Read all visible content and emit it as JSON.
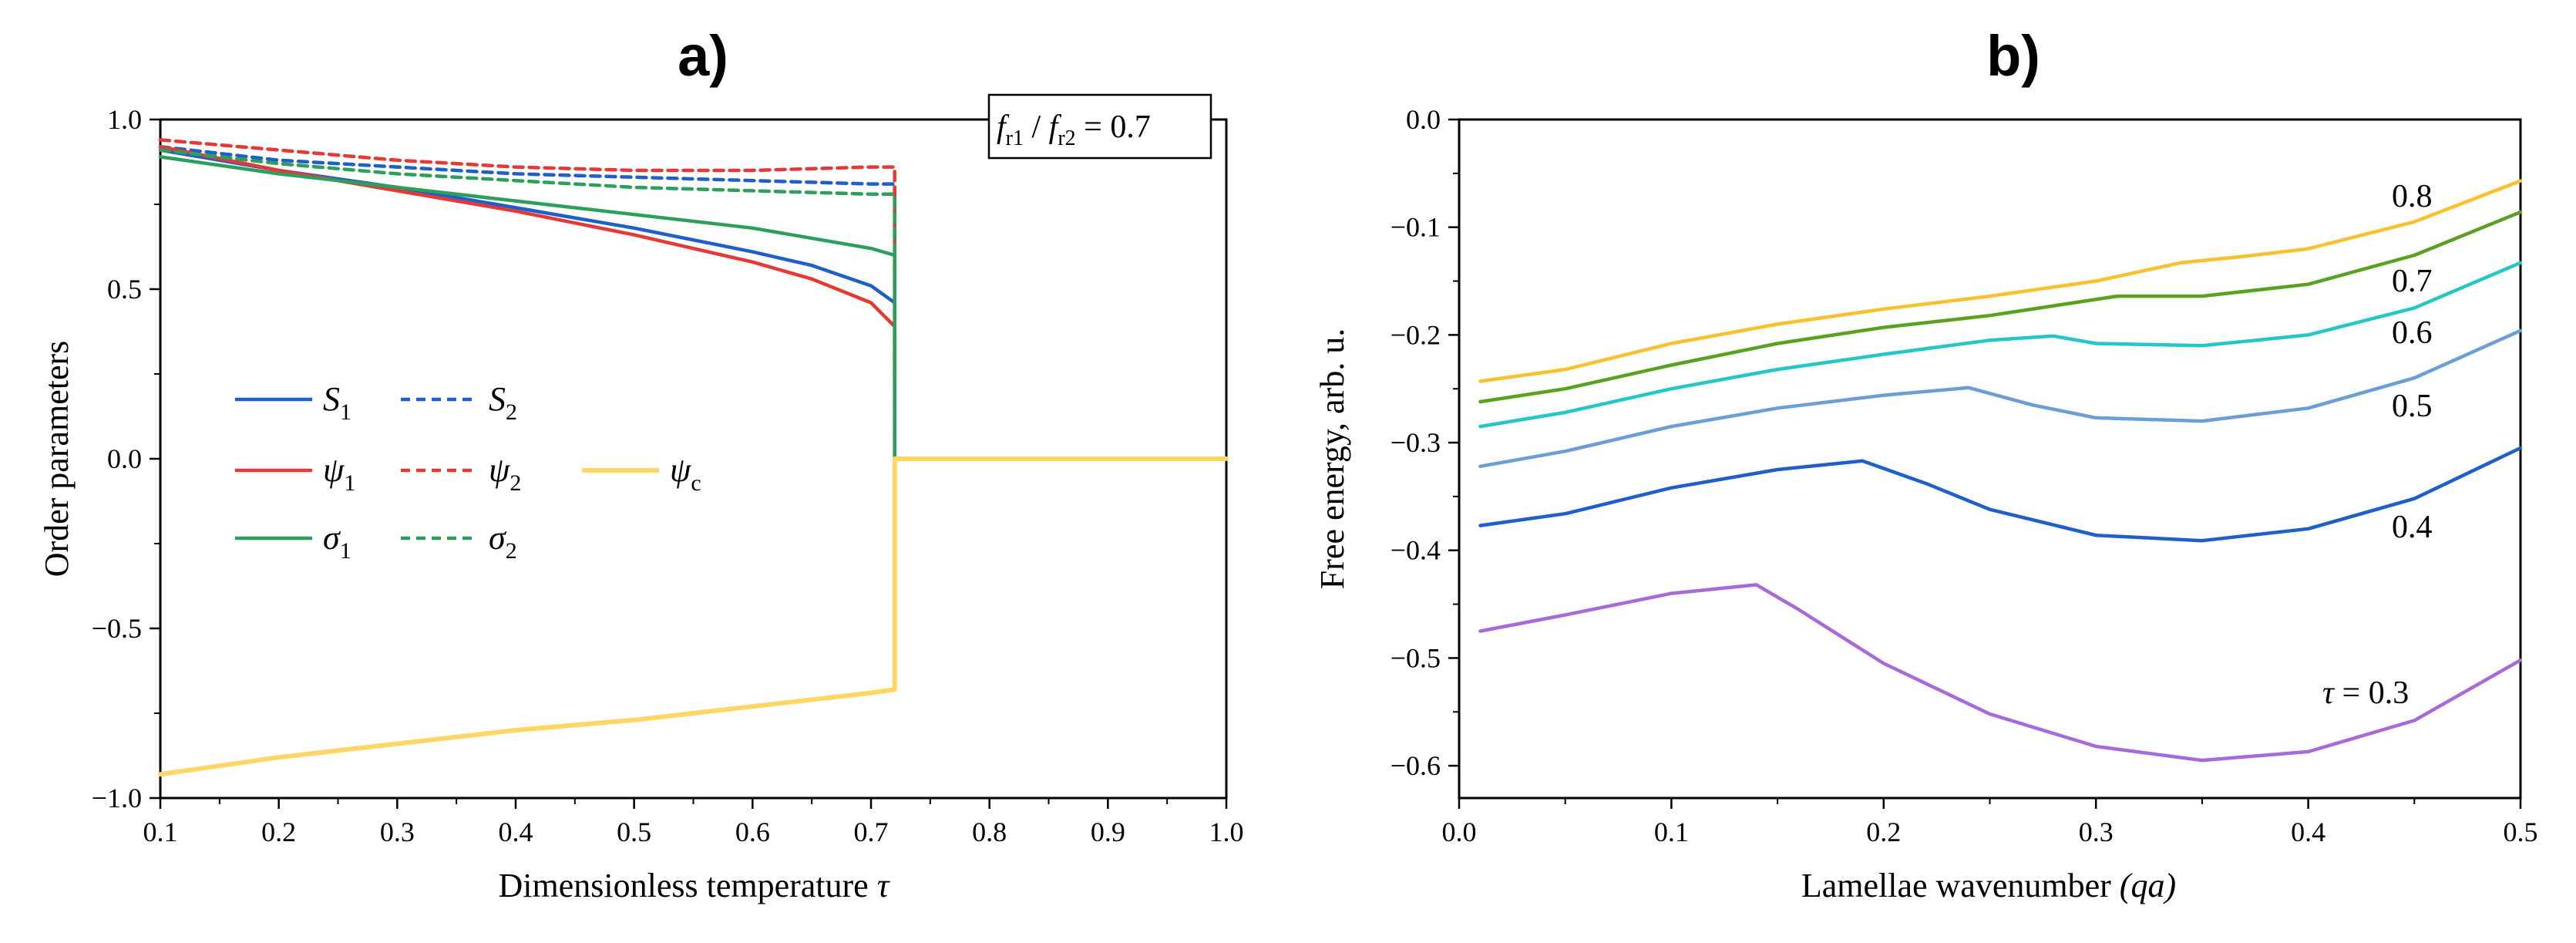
{
  "panels": {
    "a": {
      "title": "a)",
      "ratio": {
        "f": "f",
        "r1": "r1",
        "slash": " / ",
        "r2": "r2",
        "value": " = 0.7"
      },
      "legend": [
        {
          "name": "S",
          "sub": "1",
          "color": "#1f5fc9",
          "dash": false
        },
        {
          "name": "S",
          "sub": "2",
          "color": "#1f5fc9",
          "dash": true
        },
        {
          "name": "ψ",
          "sub": "1",
          "color": "#e53935",
          "dash": false
        },
        {
          "name": "ψ",
          "sub": "2",
          "color": "#e53935",
          "dash": true
        },
        {
          "name": "ψ",
          "sub": "c",
          "color": "#fdd663",
          "dash": false
        },
        {
          "name": "σ",
          "sub": "1",
          "color": "#2e9e5b",
          "dash": false
        },
        {
          "name": "σ",
          "sub": "2",
          "color": "#2e9e5b",
          "dash": true
        }
      ]
    },
    "b": {
      "title": "b)",
      "labels": [
        "0.8",
        "0.7",
        "0.6",
        "0.5",
        "0.4"
      ],
      "tau_label": {
        "prefix": "τ",
        "suffix": " = 0.3"
      }
    }
  },
  "chart_data": [
    {
      "type": "line",
      "title": "a)",
      "xlabel": "Dimensionless temperature",
      "xlabel_symbol": "τ",
      "ylabel": "Order parameters",
      "xlim": [
        0.1,
        1.0
      ],
      "ylim": [
        -1.0,
        1.0
      ],
      "xticks": [
        "0.1",
        "0.2",
        "0.3",
        "0.4",
        "0.5",
        "0.6",
        "0.7",
        "0.8",
        "0.9",
        "1.0"
      ],
      "yticks": [
        "1.0",
        "0.5",
        "0.0",
        "−0.5",
        "−1.0"
      ],
      "annotation": "f_r1 / f_r2 = 0.7",
      "series": [
        {
          "name": "S1",
          "color": "#1f5fc9",
          "dash": false,
          "x": [
            0.1,
            0.2,
            0.3,
            0.4,
            0.5,
            0.6,
            0.65,
            0.7,
            0.72,
            0.72,
            1.0
          ],
          "y": [
            0.91,
            0.85,
            0.8,
            0.74,
            0.68,
            0.61,
            0.57,
            0.51,
            0.46,
            0.0,
            0.0
          ]
        },
        {
          "name": "S2",
          "color": "#1f5fc9",
          "dash": true,
          "x": [
            0.1,
            0.2,
            0.3,
            0.4,
            0.5,
            0.6,
            0.7,
            0.72,
            0.72
          ],
          "y": [
            0.92,
            0.88,
            0.86,
            0.84,
            0.83,
            0.82,
            0.81,
            0.81,
            0.46
          ]
        },
        {
          "name": "ψ1",
          "color": "#e53935",
          "dash": false,
          "x": [
            0.1,
            0.2,
            0.3,
            0.4,
            0.5,
            0.6,
            0.65,
            0.7,
            0.72,
            0.72
          ],
          "y": [
            0.92,
            0.85,
            0.79,
            0.73,
            0.66,
            0.58,
            0.53,
            0.46,
            0.39,
            0.22
          ]
        },
        {
          "name": "ψ2",
          "color": "#e53935",
          "dash": true,
          "x": [
            0.1,
            0.2,
            0.3,
            0.4,
            0.5,
            0.6,
            0.7,
            0.72,
            0.72
          ],
          "y": [
            0.94,
            0.91,
            0.88,
            0.86,
            0.85,
            0.85,
            0.86,
            0.86,
            0.4
          ]
        },
        {
          "name": "σ1",
          "color": "#2e9e5b",
          "dash": false,
          "x": [
            0.1,
            0.2,
            0.3,
            0.4,
            0.5,
            0.6,
            0.7,
            0.72,
            0.72
          ],
          "y": [
            0.89,
            0.84,
            0.8,
            0.76,
            0.72,
            0.68,
            0.62,
            0.6,
            0.0
          ]
        },
        {
          "name": "σ2",
          "color": "#2e9e5b",
          "dash": true,
          "x": [
            0.1,
            0.2,
            0.3,
            0.4,
            0.5,
            0.6,
            0.7,
            0.72,
            0.72
          ],
          "y": [
            0.91,
            0.87,
            0.84,
            0.82,
            0.8,
            0.79,
            0.78,
            0.78,
            0.0
          ]
        },
        {
          "name": "ψc",
          "color": "#fdd663",
          "dash": false,
          "x": [
            0.1,
            0.2,
            0.3,
            0.4,
            0.5,
            0.6,
            0.7,
            0.72,
            0.72,
            1.0
          ],
          "y": [
            -0.93,
            -0.88,
            -0.84,
            -0.8,
            -0.77,
            -0.73,
            -0.69,
            -0.68,
            0.0,
            0.0
          ]
        }
      ]
    },
    {
      "type": "line",
      "title": "b)",
      "xlabel": "Lamellae wavenumber",
      "xlabel_symbol": "(qa)",
      "ylabel": "Free energy, arb. u.",
      "xlim": [
        0.0,
        0.5
      ],
      "ylim": [
        -0.63,
        0.0
      ],
      "xticks": [
        "0.0",
        "0.1",
        "0.2",
        "0.3",
        "0.4",
        "0.5"
      ],
      "yticks": [
        "0.0",
        "−0.1",
        "−0.2",
        "−0.3",
        "−0.4",
        "−0.5",
        "−0.6"
      ],
      "series": [
        {
          "name": "0.8",
          "color": "#fbc02d",
          "x": [
            0.01,
            0.05,
            0.1,
            0.15,
            0.2,
            0.25,
            0.3,
            0.34,
            0.37,
            0.4,
            0.45,
            0.5
          ],
          "y": [
            -0.243,
            -0.232,
            -0.208,
            -0.19,
            -0.176,
            -0.164,
            -0.15,
            -0.133,
            -0.127,
            -0.12,
            -0.095,
            -0.057
          ]
        },
        {
          "name": "0.7",
          "color": "#5aa121",
          "x": [
            0.01,
            0.05,
            0.1,
            0.15,
            0.2,
            0.25,
            0.31,
            0.33,
            0.35,
            0.4,
            0.45,
            0.5
          ],
          "y": [
            -0.262,
            -0.25,
            -0.228,
            -0.208,
            -0.193,
            -0.182,
            -0.164,
            -0.164,
            -0.164,
            -0.153,
            -0.126,
            -0.086
          ]
        },
        {
          "name": "0.6",
          "color": "#26c6c6",
          "x": [
            0.01,
            0.05,
            0.1,
            0.15,
            0.2,
            0.25,
            0.28,
            0.3,
            0.35,
            0.4,
            0.45,
            0.5
          ],
          "y": [
            -0.285,
            -0.272,
            -0.25,
            -0.232,
            -0.218,
            -0.205,
            -0.201,
            -0.208,
            -0.21,
            -0.2,
            -0.175,
            -0.133
          ]
        },
        {
          "name": "0.5",
          "color": "#6a9fd4",
          "x": [
            0.01,
            0.05,
            0.1,
            0.15,
            0.2,
            0.24,
            0.27,
            0.3,
            0.35,
            0.4,
            0.45,
            0.5
          ],
          "y": [
            -0.322,
            -0.308,
            -0.285,
            -0.268,
            -0.256,
            -0.249,
            -0.265,
            -0.277,
            -0.28,
            -0.268,
            -0.24,
            -0.196
          ]
        },
        {
          "name": "0.4",
          "color": "#1f5fc9",
          "x": [
            0.01,
            0.05,
            0.1,
            0.15,
            0.19,
            0.22,
            0.25,
            0.3,
            0.35,
            0.4,
            0.45,
            0.5
          ],
          "y": [
            -0.377,
            -0.366,
            -0.342,
            -0.325,
            -0.317,
            -0.338,
            -0.362,
            -0.386,
            -0.391,
            -0.38,
            -0.352,
            -0.305
          ]
        },
        {
          "name": "0.3",
          "color": "#a869d9",
          "x": [
            0.01,
            0.05,
            0.1,
            0.14,
            0.16,
            0.2,
            0.25,
            0.3,
            0.35,
            0.4,
            0.45,
            0.5
          ],
          "y": [
            -0.475,
            -0.46,
            -0.44,
            -0.432,
            -0.455,
            -0.505,
            -0.552,
            -0.582,
            -0.595,
            -0.587,
            -0.558,
            -0.502
          ]
        }
      ]
    }
  ]
}
